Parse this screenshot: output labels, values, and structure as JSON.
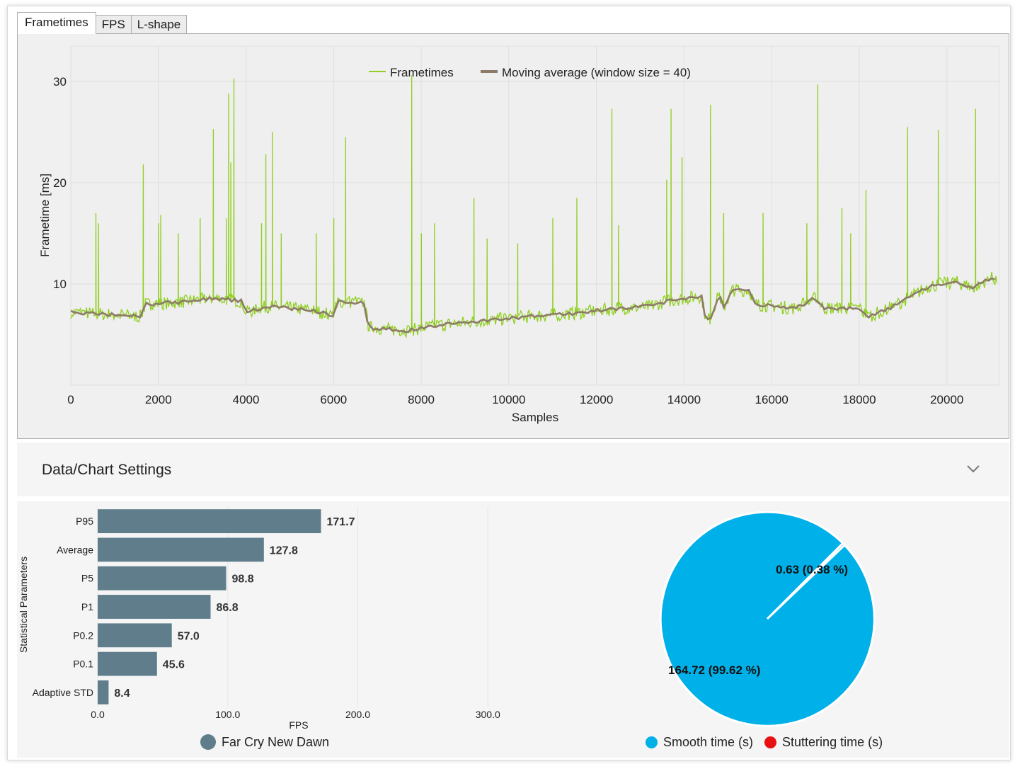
{
  "tabs": [
    "Frametimes",
    "FPS",
    "L-shape"
  ],
  "active_tab": 0,
  "settings": {
    "title": "Data/Chart Settings"
  },
  "colors": {
    "frametime": "#8fcf1f",
    "moving_avg": "#8d7b68",
    "bar": "#607d8b",
    "smooth": "#00b0e8",
    "stutter": "#e81010"
  },
  "chart_data": [
    {
      "type": "line",
      "title": "",
      "xlabel": "Samples",
      "ylabel": "Frametime [ms]",
      "xlim": [
        0,
        21200
      ],
      "ylim": [
        0,
        33.5
      ],
      "xticks": [
        0,
        2000,
        4000,
        6000,
        8000,
        10000,
        12000,
        14000,
        16000,
        18000,
        20000
      ],
      "yticks": [
        10,
        20,
        30
      ],
      "legend": [
        "Frametimes",
        "Moving average (window size = 40)"
      ],
      "baseline": [
        [
          0,
          7.2
        ],
        [
          800,
          7.0
        ],
        [
          1600,
          6.8
        ],
        [
          1700,
          8.0
        ],
        [
          2500,
          8.2
        ],
        [
          3300,
          8.6
        ],
        [
          3900,
          8.3
        ],
        [
          4000,
          7.2
        ],
        [
          4500,
          7.8
        ],
        [
          5500,
          7.4
        ],
        [
          6000,
          6.9
        ],
        [
          6100,
          8.3
        ],
        [
          6700,
          8.1
        ],
        [
          6800,
          5.7
        ],
        [
          7300,
          5.5
        ],
        [
          7700,
          5.4
        ],
        [
          8500,
          6.0
        ],
        [
          9500,
          6.4
        ],
        [
          10500,
          6.8
        ],
        [
          11500,
          7.1
        ],
        [
          12500,
          7.6
        ],
        [
          13200,
          7.8
        ],
        [
          13700,
          8.4
        ],
        [
          14400,
          8.8
        ],
        [
          14500,
          6.4
        ],
        [
          14600,
          6.6
        ],
        [
          14800,
          9.0
        ],
        [
          14900,
          7.6
        ],
        [
          15100,
          9.4
        ],
        [
          15500,
          9.4
        ],
        [
          15600,
          8.0
        ],
        [
          16500,
          7.6
        ],
        [
          17000,
          8.6
        ],
        [
          17200,
          7.6
        ],
        [
          18000,
          7.6
        ],
        [
          18200,
          6.8
        ],
        [
          18600,
          7.4
        ],
        [
          19200,
          8.8
        ],
        [
          19600,
          9.8
        ],
        [
          20200,
          10.2
        ],
        [
          20600,
          9.6
        ],
        [
          21000,
          10.6
        ],
        [
          21150,
          10.4
        ]
      ],
      "spikes": [
        [
          570,
          17
        ],
        [
          630,
          16
        ],
        [
          1650,
          21.8
        ],
        [
          2000,
          16
        ],
        [
          2050,
          16.8
        ],
        [
          2450,
          15
        ],
        [
          2950,
          16.5
        ],
        [
          3250,
          25.3
        ],
        [
          3550,
          16.5
        ],
        [
          3600,
          28.8
        ],
        [
          3650,
          22
        ],
        [
          3720,
          30.3
        ],
        [
          4350,
          16
        ],
        [
          4450,
          22.8
        ],
        [
          4600,
          25
        ],
        [
          4800,
          15
        ],
        [
          5600,
          15
        ],
        [
          6000,
          16.5
        ],
        [
          6270,
          24.5
        ],
        [
          7780,
          30.6
        ],
        [
          8000,
          15
        ],
        [
          8300,
          16
        ],
        [
          9200,
          18.5
        ],
        [
          9500,
          14.5
        ],
        [
          10200,
          14
        ],
        [
          11000,
          16.5
        ],
        [
          11550,
          18.5
        ],
        [
          12350,
          27.3
        ],
        [
          12500,
          15.8
        ],
        [
          13600,
          20.3
        ],
        [
          13700,
          27.3
        ],
        [
          13950,
          22.5
        ],
        [
          14600,
          27.7
        ],
        [
          14900,
          17
        ],
        [
          15800,
          17
        ],
        [
          16800,
          16
        ],
        [
          17050,
          29.7
        ],
        [
          17600,
          17.5
        ],
        [
          17800,
          15
        ],
        [
          18150,
          19.3
        ],
        [
          19100,
          25.5
        ],
        [
          19800,
          25.2
        ],
        [
          20650,
          27.3
        ]
      ]
    },
    {
      "type": "bar",
      "orientation": "horizontal",
      "xlabel": "FPS",
      "ylabel": "Statistical Parameters",
      "xlim": [
        0,
        320
      ],
      "xticks": [
        "0.0",
        "100.0",
        "200.0",
        "300.0"
      ],
      "categories": [
        "P95",
        "Average",
        "P5",
        "P1",
        "P0.2",
        "P0.1",
        "Adaptive STD"
      ],
      "values": [
        171.7,
        127.8,
        98.8,
        86.8,
        57.0,
        45.6,
        8.4
      ],
      "value_labels": [
        "171.7",
        "127.8",
        "98.8",
        "86.8",
        "57.0",
        "45.6",
        "8.4"
      ],
      "legend": [
        "Far Cry New Dawn"
      ]
    },
    {
      "type": "pie",
      "labels": [
        "Smooth time (s)",
        "Stuttering time (s)"
      ],
      "values": [
        164.72,
        0.63
      ],
      "slice_labels": [
        "164.72 (99.62 %)",
        "0.63 (0.38 %)"
      ],
      "legend": [
        "Smooth time (s)",
        "Stuttering time (s)"
      ]
    }
  ]
}
